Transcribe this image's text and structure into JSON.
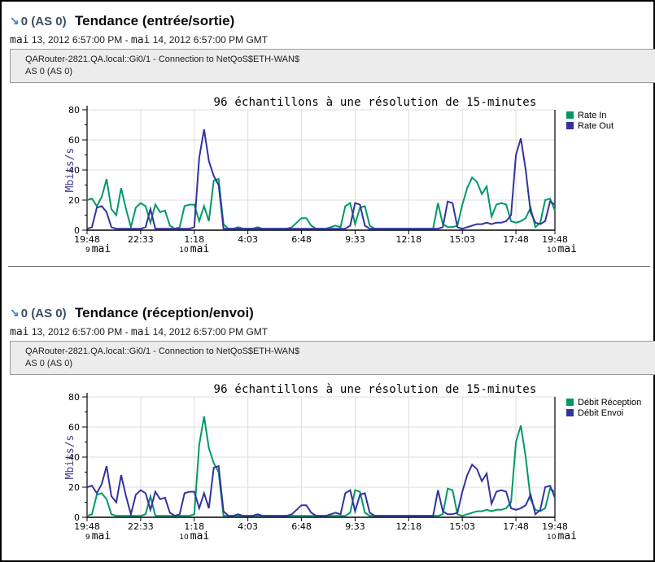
{
  "accent_colors": {
    "arrow_blue": "#4a7fc1",
    "green": "#009966",
    "blue": "#3333a0",
    "grid": "#dedede"
  },
  "sections": [
    {
      "header": {
        "arrow_icon": "↘",
        "as_label": "0 (AS 0)",
        "title": "Tendance (entrée/sortie)"
      },
      "date_range": {
        "month1": "mai",
        "part1": " 13, 2012 6:57:00 PM - ",
        "month2": "mai",
        "part2": " 14, 2012 6:57:00 PM GMT"
      },
      "source_box": {
        "line1": "QARouter-2821.QA.local::Gi0/1 - Connection to NetQoS$ETH-WAN$",
        "line2": "AS 0 (AS 0)"
      }
    },
    {
      "header": {
        "arrow_icon": "↘",
        "as_label": "0 (AS 0)",
        "title": "Tendance (réception/envoi)"
      },
      "date_range": {
        "month1": "mai",
        "part1": " 13, 2012 6:57:00 PM - ",
        "month2": "mai",
        "part2": " 14, 2012 6:57:00 PM GMT"
      },
      "source_box": {
        "line1": "QARouter-2821.QA.local::Gi0/1 - Connection to NetQoS$ETH-WAN$",
        "line2": "AS 0 (AS 0)"
      }
    }
  ],
  "chart_data": [
    {
      "type": "line",
      "title": "96 échantillons à une résolution de 15-minutes",
      "ylabel": "Mbits/s",
      "ylim": [
        0,
        80
      ],
      "yticks": [
        0,
        20,
        40,
        60,
        80
      ],
      "y_minor_step": 10,
      "grid": true,
      "legend_position": "right",
      "samples_per_series": 97,
      "x_tick_labels": [
        "19:48",
        "22:33",
        "1:18",
        "4:03",
        "6:48",
        "9:33",
        "12:18",
        "15:03",
        "17:48",
        "19:48"
      ],
      "x_tick_samples": [
        0,
        11,
        22,
        33,
        44,
        55,
        66,
        77,
        88,
        96
      ],
      "day_labels": [
        {
          "sample": 0,
          "day": "9",
          "month": "mai",
          "align": "left"
        },
        {
          "sample": 22,
          "day": "10",
          "month": "mai",
          "align": "center"
        },
        {
          "sample": 96,
          "day": "10",
          "month": "mai",
          "align": "right"
        }
      ],
      "series": [
        {
          "name": "Rate In",
          "color": "#009966",
          "values": [
            20,
            21,
            16,
            22,
            34,
            14,
            10,
            28,
            14,
            2,
            15,
            18,
            16,
            5,
            17,
            12,
            13,
            3,
            1,
            2,
            16,
            17,
            17,
            6,
            16,
            6,
            33,
            34,
            4,
            1,
            1,
            2,
            1,
            1,
            1,
            2,
            1,
            1,
            1,
            1,
            1,
            1,
            2,
            5,
            8,
            8,
            3,
            1,
            1,
            1,
            2,
            3,
            2,
            16,
            18,
            4,
            15,
            16,
            3,
            1,
            1,
            1,
            1,
            1,
            1,
            1,
            1,
            1,
            1,
            1,
            1,
            1,
            18,
            4,
            2,
            2,
            3,
            17,
            28,
            35,
            32,
            24,
            29,
            9,
            17,
            18,
            17,
            6,
            5,
            6,
            8,
            15,
            2,
            5,
            20,
            21,
            13
          ]
        },
        {
          "name": "Rate Out",
          "color": "#3333a0",
          "values": [
            1,
            2,
            15,
            16,
            12,
            2,
            1,
            1,
            1,
            1,
            1,
            1,
            2,
            14,
            1,
            1,
            1,
            1,
            1,
            1,
            1,
            1,
            2,
            48,
            67,
            46,
            36,
            30,
            1,
            1,
            1,
            1,
            1,
            1,
            1,
            1,
            1,
            1,
            1,
            1,
            1,
            1,
            1,
            1,
            1,
            1,
            1,
            1,
            1,
            1,
            1,
            1,
            1,
            1,
            3,
            18,
            17,
            3,
            1,
            1,
            1,
            1,
            1,
            1,
            1,
            1,
            1,
            1,
            1,
            1,
            1,
            1,
            1,
            2,
            19,
            18,
            2,
            1,
            2,
            3,
            4,
            4,
            5,
            4,
            5,
            5,
            6,
            10,
            50,
            61,
            40,
            12,
            5,
            4,
            6,
            19,
            17
          ]
        }
      ]
    },
    {
      "type": "line",
      "title": "96 échantillons à une résolution de 15-minutes",
      "ylabel": "Mbits/s",
      "ylim": [
        0,
        80
      ],
      "yticks": [
        0,
        20,
        40,
        60,
        80
      ],
      "y_minor_step": 10,
      "grid": true,
      "legend_position": "right",
      "samples_per_series": 97,
      "x_tick_labels": [
        "19:48",
        "22:33",
        "1:18",
        "4:03",
        "6:48",
        "9:33",
        "12:18",
        "15:03",
        "17:48",
        "19:48"
      ],
      "x_tick_samples": [
        0,
        11,
        22,
        33,
        44,
        55,
        66,
        77,
        88,
        96
      ],
      "day_labels": [
        {
          "sample": 0,
          "day": "9",
          "month": "mai",
          "align": "left"
        },
        {
          "sample": 22,
          "day": "10",
          "month": "mai",
          "align": "center"
        },
        {
          "sample": 96,
          "day": "10",
          "month": "mai",
          "align": "right"
        }
      ],
      "series": [
        {
          "name": "Débit Réception",
          "color": "#009966",
          "values": [
            1,
            2,
            15,
            16,
            12,
            2,
            1,
            1,
            1,
            1,
            1,
            1,
            2,
            14,
            1,
            1,
            1,
            1,
            1,
            1,
            1,
            1,
            2,
            48,
            67,
            46,
            36,
            30,
            1,
            1,
            1,
            1,
            1,
            1,
            1,
            1,
            1,
            1,
            1,
            1,
            1,
            1,
            1,
            1,
            1,
            1,
            1,
            1,
            1,
            1,
            1,
            1,
            1,
            1,
            3,
            18,
            17,
            3,
            1,
            1,
            1,
            1,
            1,
            1,
            1,
            1,
            1,
            1,
            1,
            1,
            1,
            1,
            1,
            2,
            19,
            18,
            2,
            1,
            2,
            3,
            4,
            4,
            5,
            4,
            5,
            5,
            6,
            10,
            50,
            61,
            40,
            12,
            5,
            4,
            6,
            19,
            17
          ]
        },
        {
          "name": "Débit Envoi",
          "color": "#3333a0",
          "values": [
            20,
            21,
            16,
            22,
            34,
            14,
            10,
            28,
            14,
            2,
            15,
            18,
            16,
            5,
            17,
            12,
            13,
            3,
            1,
            2,
            16,
            17,
            17,
            6,
            16,
            6,
            33,
            34,
            4,
            1,
            1,
            2,
            1,
            1,
            1,
            2,
            1,
            1,
            1,
            1,
            1,
            1,
            2,
            5,
            8,
            8,
            3,
            1,
            1,
            1,
            2,
            3,
            2,
            16,
            18,
            4,
            15,
            16,
            3,
            1,
            1,
            1,
            1,
            1,
            1,
            1,
            1,
            1,
            1,
            1,
            1,
            1,
            18,
            4,
            2,
            2,
            3,
            17,
            28,
            35,
            32,
            24,
            29,
            9,
            17,
            18,
            17,
            6,
            5,
            6,
            8,
            15,
            2,
            5,
            20,
            21,
            13
          ]
        }
      ]
    }
  ]
}
